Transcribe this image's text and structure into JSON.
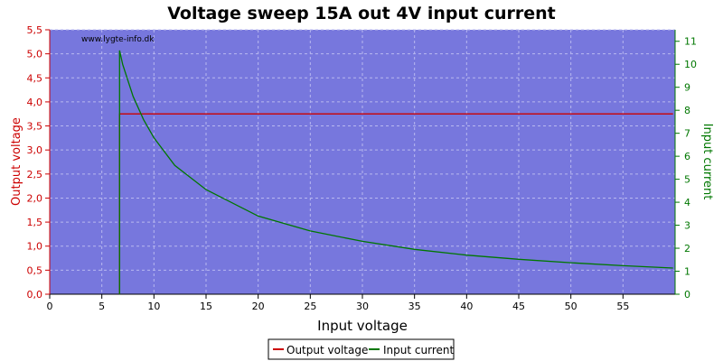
{
  "chart_data": {
    "type": "line",
    "title": "Voltage sweep 15A out 4V input current",
    "watermark": "www.lygte-info.dk",
    "xlabel": "Input voltage",
    "ylabel_left": "Output voltage",
    "ylabel_right": "Input current",
    "xlim": [
      0,
      60
    ],
    "ylim_left": [
      0,
      5.5
    ],
    "ylim_right": [
      0,
      11.5
    ],
    "x_ticks": [
      "0",
      "5",
      "10",
      "15",
      "20",
      "25",
      "30",
      "35",
      "40",
      "45",
      "50",
      "55"
    ],
    "y_left_ticks": [
      "0,0",
      "0,5",
      "1,0",
      "1,5",
      "2,0",
      "2,5",
      "3,0",
      "3,5",
      "4,0",
      "4,5",
      "5,0",
      "5,5"
    ],
    "y_right_ticks": [
      "0",
      "1",
      "2",
      "3",
      "4",
      "5",
      "6",
      "7",
      "8",
      "9",
      "10",
      "11"
    ],
    "grid": true,
    "legend_position": "bottom",
    "colors": {
      "plot_bg": "#7777dd",
      "grid": "#b8b8f0",
      "output_voltage": "#cc0000",
      "input_current": "#007700",
      "left_axis": "#cc0000",
      "right_axis": "#007700"
    },
    "series": [
      {
        "name": "Output voltage",
        "axis": "left",
        "x": [
          6.7,
          6.7,
          6.8,
          10,
          20,
          30,
          40,
          50,
          59.8
        ],
        "y": [
          0.0,
          3.75,
          3.75,
          3.75,
          3.75,
          3.75,
          3.75,
          3.75,
          3.75
        ]
      },
      {
        "name": "Input current",
        "axis": "right",
        "x": [
          6.7,
          6.7,
          7,
          8,
          9,
          10,
          12,
          15,
          20,
          25,
          30,
          35,
          40,
          45,
          50,
          55,
          59.8
        ],
        "y": [
          0.0,
          10.6,
          10.0,
          8.6,
          7.6,
          6.8,
          5.6,
          4.55,
          3.4,
          2.75,
          2.3,
          1.95,
          1.7,
          1.52,
          1.37,
          1.24,
          1.14
        ]
      }
    ]
  }
}
